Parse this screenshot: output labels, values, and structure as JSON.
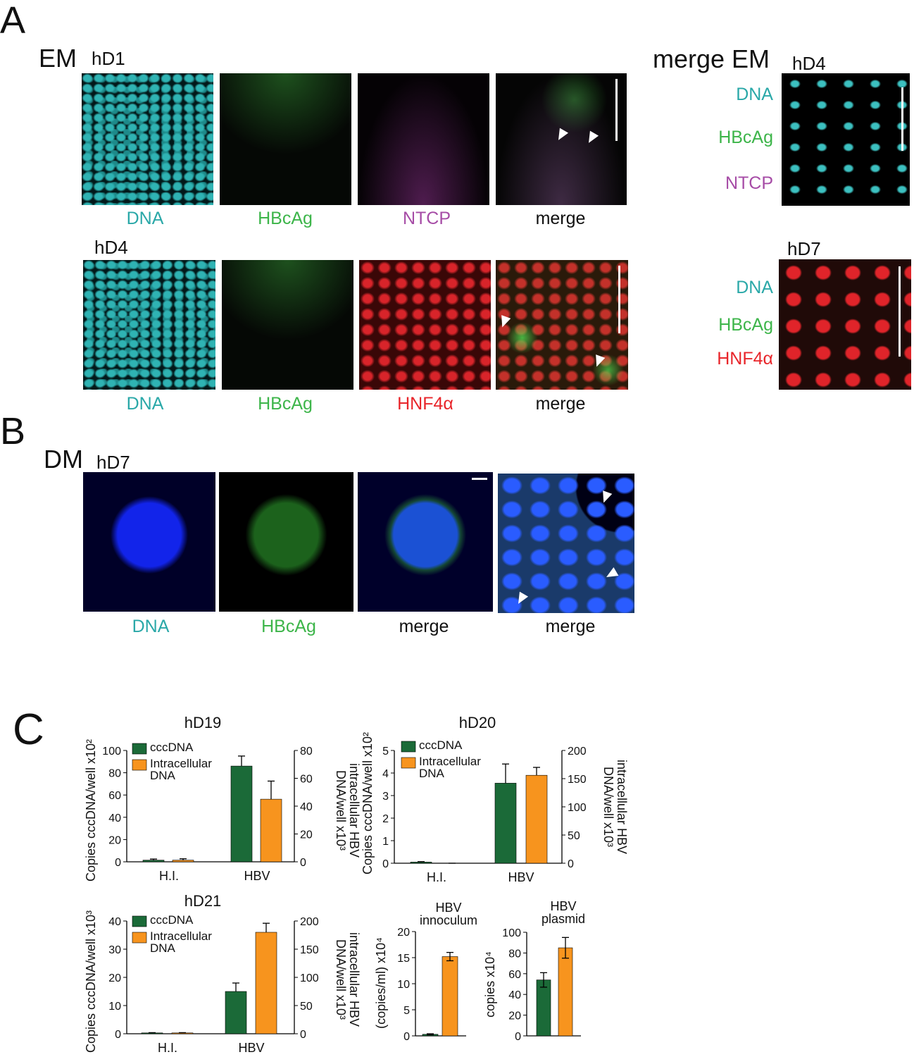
{
  "panels": {
    "A": {
      "label": "A",
      "em": {
        "title": "EM",
        "rows": [
          {
            "day": "hD1",
            "channels": [
              "DNA",
              "HBcAg",
              "NTCP",
              "merge"
            ]
          },
          {
            "day": "hD4",
            "channels": [
              "DNA",
              "HBcAg",
              "HNF4α",
              "merge"
            ]
          }
        ]
      },
      "merge_em": {
        "title": "merge EM",
        "rows": [
          {
            "day": "hD4",
            "channels": [
              "DNA",
              "HBcAg",
              "NTCP"
            ]
          },
          {
            "day": "hD7",
            "channels": [
              "DNA",
              "HBcAg",
              "HNF4α"
            ]
          }
        ]
      }
    },
    "B": {
      "label": "B",
      "title": "DM",
      "day": "hD7",
      "channels": [
        "DNA",
        "HBcAg",
        "merge",
        "merge"
      ]
    },
    "C": {
      "label": "C"
    }
  },
  "chart_data": [
    {
      "type": "grouped_bar",
      "title": "hD19",
      "categories": [
        "H.I.",
        "HBV"
      ],
      "ylabel": "Copies cccDNA/well x10²",
      "y2label": [
        "intracellular HBV",
        "DNA/well x10³"
      ],
      "ylim": [
        0,
        100
      ],
      "yticks": [
        0,
        20,
        40,
        60,
        80,
        100
      ],
      "y2lim": [
        0,
        80
      ],
      "y2ticks": [
        0,
        20,
        40,
        60,
        80
      ],
      "series": [
        {
          "name": "cccDNA",
          "color": "#1b6a38",
          "values": [
            1.5,
            86
          ],
          "errors": [
            1,
            9
          ]
        },
        {
          "name": "Intracellular DNA",
          "color": "#f7941e",
          "axis": "y2",
          "values": [
            1.2,
            45
          ],
          "errors": [
            1,
            13
          ]
        }
      ]
    },
    {
      "type": "grouped_bar",
      "title": "hD20",
      "categories": [
        "H.I.",
        "HBV"
      ],
      "ylabel": "Copies cccDNA/well x10²",
      "y2label": [
        "intracellular HBV",
        "DNA/well x10³"
      ],
      "ylim": [
        0,
        5
      ],
      "yticks": [
        0,
        1,
        2,
        3,
        4,
        5
      ],
      "y2lim": [
        0,
        200
      ],
      "y2ticks": [
        0,
        50,
        100,
        150,
        200
      ],
      "series": [
        {
          "name": "cccDNA",
          "color": "#1b6a38",
          "values": [
            0.05,
            3.55
          ],
          "errors": [
            0.02,
            0.85
          ]
        },
        {
          "name": "Intracellular DNA",
          "color": "#f7941e",
          "axis": "y2",
          "values": [
            0,
            156
          ],
          "errors": [
            0,
            14
          ]
        }
      ]
    },
    {
      "type": "grouped_bar",
      "title": "hD21",
      "categories": [
        "H.I.",
        "HBV"
      ],
      "ylabel": "Copies cccDNA/well  x10³",
      "y2label": [
        "intracellular HBV",
        "DNA/well x10³"
      ],
      "ylim": [
        0,
        40
      ],
      "yticks": [
        0,
        10,
        20,
        30,
        40
      ],
      "y2lim": [
        0,
        200
      ],
      "y2ticks": [
        0,
        50,
        100,
        150,
        200
      ],
      "series": [
        {
          "name": "cccDNA",
          "color": "#1b6a38",
          "values": [
            0.3,
            15
          ],
          "errors": [
            0.1,
            3
          ]
        },
        {
          "name": "Intracellular DNA",
          "color": "#f7941e",
          "axis": "y2",
          "values": [
            1.5,
            180
          ],
          "errors": [
            0.5,
            16
          ]
        }
      ]
    },
    {
      "type": "bar",
      "title": [
        "HBV",
        "innoculum"
      ],
      "categories": [
        null,
        null
      ],
      "ylabel": "(copies/ml) x10⁴",
      "ylim": [
        0,
        20
      ],
      "yticks": [
        0,
        5,
        10,
        15,
        20
      ],
      "values": [
        0.3,
        15.2
      ],
      "errors": [
        0.1,
        0.8
      ],
      "colors": [
        "#1b6a38",
        "#f7941e"
      ]
    },
    {
      "type": "bar",
      "title": [
        "HBV",
        "plasmid"
      ],
      "categories": [
        null,
        null
      ],
      "ylabel": "copies x10⁴",
      "ylim": [
        0,
        100
      ],
      "yticks": [
        0,
        20,
        40,
        60,
        80,
        100
      ],
      "values": [
        54,
        85
      ],
      "errors": [
        7,
        10
      ],
      "colors": [
        "#1b6a38",
        "#f7941e"
      ]
    }
  ]
}
